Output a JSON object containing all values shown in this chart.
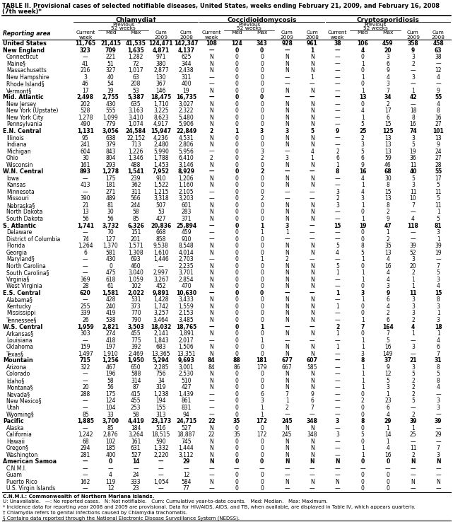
{
  "title": "TABLE II. Provisional cases of selected notifiable diseases, United States, weeks ending February 21, 2009, and February 16, 2008",
  "subtitle": "(7th week)*",
  "col_groups": [
    "Chlamydia†",
    "Coccidioidomycosis",
    "Cryptosporidiosis"
  ],
  "rows": [
    [
      "United States",
      "11,765",
      "21,415",
      "41,535",
      "124,471",
      "142,347",
      "108",
      "124",
      "343",
      "928",
      "961",
      "38",
      "106",
      "459",
      "358",
      "458"
    ],
    [
      "New England",
      "323",
      "709",
      "1,635",
      "4,871",
      "4,137",
      "—",
      "0",
      "0",
      "—",
      "1",
      "—",
      "4",
      "20",
      "9",
      "63"
    ],
    [
      "Connecticut",
      "—",
      "221",
      "1,282",
      "971",
      "625",
      "N",
      "0",
      "0",
      "N",
      "N",
      "—",
      "0",
      "3",
      "3",
      "38"
    ],
    [
      "Maine§",
      "41",
      "51",
      "72",
      "380",
      "344",
      "N",
      "0",
      "0",
      "N",
      "N",
      "—",
      "1",
      "6",
      "2",
      "—"
    ],
    [
      "Massachusetts",
      "216",
      "327",
      "1,017",
      "2,877",
      "2,438",
      "N",
      "0",
      "0",
      "N",
      "N",
      "—",
      "0",
      "9",
      "—",
      "12"
    ],
    [
      "New Hampshire",
      "3",
      "40",
      "63",
      "130",
      "311",
      "—",
      "0",
      "0",
      "—",
      "1",
      "—",
      "1",
      "4",
      "3",
      "4"
    ],
    [
      "Rhode Island§",
      "46",
      "54",
      "208",
      "367",
      "400",
      "—",
      "0",
      "0",
      "—",
      "—",
      "—",
      "0",
      "3",
      "—",
      "—"
    ],
    [
      "Vermont§",
      "17",
      "19",
      "53",
      "146",
      "19",
      "N",
      "0",
      "0",
      "N",
      "N",
      "—",
      "1",
      "7",
      "1",
      "9"
    ],
    [
      "Mid. Atlantic",
      "2,498",
      "2,755",
      "5,387",
      "18,475",
      "16,735",
      "—",
      "0",
      "0",
      "—",
      "—",
      "—",
      "13",
      "34",
      "42",
      "55"
    ],
    [
      "New Jersey",
      "202",
      "430",
      "635",
      "1,710",
      "3,027",
      "N",
      "0",
      "0",
      "N",
      "N",
      "—",
      "0",
      "2",
      "—",
      "4"
    ],
    [
      "New York (Upstate)",
      "528",
      "555",
      "3,163",
      "3,225",
      "2,322",
      "N",
      "0",
      "0",
      "N",
      "N",
      "—",
      "4",
      "17",
      "18",
      "8"
    ],
    [
      "New York City",
      "1,278",
      "1,099",
      "3,410",
      "8,623",
      "5,480",
      "N",
      "0",
      "0",
      "N",
      "N",
      "—",
      "1",
      "6",
      "8",
      "16"
    ],
    [
      "Pennsylvania",
      "490",
      "779",
      "1,074",
      "4,917",
      "5,906",
      "N",
      "0",
      "0",
      "N",
      "N",
      "—",
      "5",
      "15",
      "16",
      "27"
    ],
    [
      "E.N. Central",
      "1,131",
      "3,056",
      "24,584",
      "15,947",
      "22,849",
      "2",
      "1",
      "3",
      "3",
      "5",
      "9",
      "25",
      "125",
      "74",
      "101"
    ],
    [
      "Illinois",
      "95",
      "638",
      "22,152",
      "4,236",
      "4,531",
      "N",
      "0",
      "0",
      "N",
      "N",
      "—",
      "2",
      "13",
      "3",
      "13"
    ],
    [
      "Indiana",
      "241",
      "379",
      "713",
      "2,480",
      "2,806",
      "N",
      "0",
      "0",
      "N",
      "N",
      "—",
      "3",
      "13",
      "5",
      "9"
    ],
    [
      "Michigan",
      "604",
      "843",
      "1,226",
      "5,990",
      "5,956",
      "—",
      "0",
      "3",
      "—",
      "4",
      "2",
      "5",
      "13",
      "19",
      "24"
    ],
    [
      "Ohio",
      "30",
      "804",
      "1,346",
      "1,788",
      "6,410",
      "2",
      "0",
      "2",
      "3",
      "1",
      "6",
      "6",
      "59",
      "36",
      "27"
    ],
    [
      "Wisconsin",
      "161",
      "293",
      "488",
      "1,453",
      "3,146",
      "N",
      "0",
      "0",
      "N",
      "N",
      "1",
      "9",
      "46",
      "11",
      "28"
    ],
    [
      "W.N. Central",
      "893",
      "1,278",
      "1,541",
      "7,952",
      "8,929",
      "—",
      "0",
      "2",
      "—",
      "—",
      "8",
      "16",
      "68",
      "40",
      "55"
    ],
    [
      "Iowa",
      "—",
      "175",
      "239",
      "910",
      "1,206",
      "N",
      "0",
      "0",
      "N",
      "N",
      "—",
      "4",
      "30",
      "5",
      "17"
    ],
    [
      "Kansas",
      "413",
      "181",
      "362",
      "1,522",
      "1,160",
      "N",
      "0",
      "0",
      "N",
      "N",
      "—",
      "1",
      "8",
      "3",
      "5"
    ],
    [
      "Minnesota",
      "—",
      "271",
      "311",
      "1,215",
      "2,105",
      "—",
      "0",
      "0",
      "—",
      "—",
      "3",
      "4",
      "15",
      "11",
      "11"
    ],
    [
      "Missouri",
      "390",
      "489",
      "566",
      "3,318",
      "3,203",
      "—",
      "0",
      "2",
      "—",
      "—",
      "2",
      "3",
      "13",
      "10",
      "5"
    ],
    [
      "Nebraska§",
      "21",
      "81",
      "244",
      "507",
      "601",
      "N",
      "0",
      "0",
      "N",
      "N",
      "3",
      "1",
      "8",
      "7",
      "11"
    ],
    [
      "North Dakota",
      "13",
      "30",
      "58",
      "53",
      "283",
      "N",
      "0",
      "0",
      "N",
      "N",
      "—",
      "0",
      "2",
      "—",
      "1"
    ],
    [
      "South Dakota",
      "56",
      "56",
      "85",
      "427",
      "371",
      "N",
      "0",
      "0",
      "N",
      "N",
      "—",
      "1",
      "9",
      "4",
      "5"
    ],
    [
      "S. Atlantic",
      "1,741",
      "3,732",
      "6,326",
      "20,836",
      "25,894",
      "—",
      "0",
      "1",
      "3",
      "—",
      "15",
      "19",
      "47",
      "118",
      "81"
    ],
    [
      "Delaware",
      "—",
      "70",
      "151",
      "668",
      "459",
      "—",
      "0",
      "1",
      "1",
      "—",
      "—",
      "0",
      "1",
      "—",
      "3"
    ],
    [
      "District of Columbia",
      "74",
      "127",
      "201",
      "858",
      "910",
      "—",
      "0",
      "0",
      "—",
      "—",
      "—",
      "0",
      "2",
      "—",
      "1"
    ],
    [
      "Florida",
      "1,264",
      "1,370",
      "1,571",
      "9,538",
      "8,548",
      "N",
      "0",
      "0",
      "N",
      "N",
      "5",
      "8",
      "35",
      "39",
      "39"
    ],
    [
      "Georgia",
      "6",
      "581",
      "1,308",
      "1,610",
      "4,014",
      "N",
      "0",
      "0",
      "N",
      "N",
      "4",
      "5",
      "13",
      "52",
      "19"
    ],
    [
      "Maryland§",
      "—",
      "430",
      "693",
      "1,446",
      "2,703",
      "—",
      "0",
      "1",
      "2",
      "—",
      "—",
      "1",
      "4",
      "3",
      "—"
    ],
    [
      "North Carolina",
      "—",
      "0",
      "460",
      "—",
      "2,235",
      "N",
      "0",
      "0",
      "N",
      "N",
      "5",
      "0",
      "16",
      "20",
      "7"
    ],
    [
      "South Carolina§",
      "—",
      "475",
      "3,040",
      "2,997",
      "3,701",
      "N",
      "0",
      "0",
      "N",
      "N",
      "1",
      "1",
      "4",
      "2",
      "5"
    ],
    [
      "Virginia§",
      "369",
      "618",
      "1,059",
      "3,267",
      "2,854",
      "N",
      "0",
      "0",
      "N",
      "N",
      "—",
      "1",
      "4",
      "1",
      "3"
    ],
    [
      "West Virginia",
      "28",
      "61",
      "102",
      "452",
      "470",
      "N",
      "0",
      "0",
      "N",
      "N",
      "—",
      "0",
      "3",
      "1",
      "4"
    ],
    [
      "E.S. Central",
      "620",
      "1,581",
      "2,022",
      "9,891",
      "10,630",
      "—",
      "0",
      "0",
      "—",
      "—",
      "1",
      "3",
      "9",
      "11",
      "15"
    ],
    [
      "Alabama§",
      "—",
      "428",
      "531",
      "1,428",
      "3,433",
      "N",
      "0",
      "0",
      "N",
      "N",
      "—",
      "1",
      "6",
      "3",
      "8"
    ],
    [
      "Kentucky",
      "255",
      "240",
      "373",
      "1,742",
      "1,559",
      "N",
      "0",
      "0",
      "N",
      "N",
      "1",
      "0",
      "4",
      "3",
      "3"
    ],
    [
      "Mississippi",
      "339",
      "419",
      "770",
      "3,257",
      "2,153",
      "N",
      "0",
      "0",
      "N",
      "N",
      "—",
      "0",
      "2",
      "3",
      "1"
    ],
    [
      "Tennessee§",
      "26",
      "538",
      "790",
      "3,464",
      "3,485",
      "N",
      "0",
      "0",
      "N",
      "N",
      "—",
      "1",
      "6",
      "2",
      "3"
    ],
    [
      "W.S. Central",
      "1,959",
      "2,821",
      "3,503",
      "18,032",
      "18,765",
      "—",
      "0",
      "1",
      "—",
      "—",
      "2",
      "7",
      "164",
      "4",
      "18"
    ],
    [
      "Arkansas§",
      "303",
      "274",
      "455",
      "2,141",
      "1,891",
      "N",
      "0",
      "0",
      "N",
      "N",
      "1",
      "0",
      "7",
      "1",
      "1"
    ],
    [
      "Louisiana",
      "—",
      "418",
      "775",
      "1,843",
      "2,017",
      "—",
      "0",
      "1",
      "—",
      "—",
      "—",
      "1",
      "5",
      "—",
      "4"
    ],
    [
      "Oklahoma",
      "159",
      "197",
      "392",
      "683",
      "1,506",
      "N",
      "0",
      "0",
      "N",
      "N",
      "1",
      "1",
      "16",
      "3",
      "6"
    ],
    [
      "Texas§",
      "1,497",
      "1,910",
      "2,469",
      "13,365",
      "13,351",
      "N",
      "0",
      "0",
      "N",
      "N",
      "—",
      "3",
      "149",
      "—",
      "7"
    ],
    [
      "Mountain",
      "715",
      "1,256",
      "1,950",
      "5,294",
      "9,693",
      "84",
      "88",
      "181",
      "677",
      "607",
      "—",
      "8",
      "37",
      "21",
      "31"
    ],
    [
      "Arizona",
      "322",
      "467",
      "650",
      "2,285",
      "3,001",
      "84",
      "86",
      "179",
      "667",
      "585",
      "—",
      "1",
      "9",
      "3",
      "8"
    ],
    [
      "Colorado",
      "—",
      "196",
      "588",
      "756",
      "2,530",
      "N",
      "0",
      "0",
      "N",
      "N",
      "—",
      "1",
      "12",
      "5",
      "5"
    ],
    [
      "Idaho§",
      "—",
      "58",
      "314",
      "34",
      "510",
      "N",
      "0",
      "0",
      "N",
      "N",
      "—",
      "1",
      "5",
      "2",
      "8"
    ],
    [
      "Montana§",
      "20",
      "56",
      "87",
      "319",
      "427",
      "N",
      "0",
      "0",
      "N",
      "N",
      "—",
      "1",
      "3",
      "2",
      "4"
    ],
    [
      "Nevada§",
      "288",
      "175",
      "415",
      "1,238",
      "1,439",
      "—",
      "0",
      "6",
      "7",
      "9",
      "—",
      "0",
      "1",
      "2",
      "—"
    ],
    [
      "New Mexico§",
      "—",
      "124",
      "455",
      "194",
      "861",
      "—",
      "0",
      "3",
      "1",
      "6",
      "—",
      "2",
      "23",
      "5",
      "3"
    ],
    [
      "Utah",
      "—",
      "104",
      "253",
      "155",
      "831",
      "—",
      "0",
      "1",
      "2",
      "7",
      "—",
      "0",
      "6",
      "—",
      "3"
    ],
    [
      "Wyoming§",
      "85",
      "33",
      "58",
      "313",
      "94",
      "—",
      "0",
      "1",
      "—",
      "—",
      "—",
      "0",
      "4",
      "2",
      "—"
    ],
    [
      "Pacific",
      "1,885",
      "3,700",
      "4,419",
      "23,173",
      "24,715",
      "22",
      "35",
      "172",
      "245",
      "348",
      "3",
      "8",
      "29",
      "39",
      "39"
    ],
    [
      "Alaska",
      "—",
      "85",
      "184",
      "516",
      "527",
      "N",
      "0",
      "0",
      "N",
      "N",
      "—",
      "0",
      "1",
      "1",
      "—"
    ],
    [
      "California",
      "1,242",
      "2,876",
      "3,264",
      "18,515",
      "18,887",
      "22",
      "35",
      "172",
      "245",
      "348",
      "3",
      "5",
      "14",
      "25",
      "29"
    ],
    [
      "Hawaii",
      "68",
      "102",
      "161",
      "590",
      "745",
      "N",
      "0",
      "0",
      "N",
      "N",
      "—",
      "0",
      "1",
      "—",
      "—"
    ],
    [
      "Oregon§",
      "294",
      "185",
      "631",
      "1,332",
      "1,444",
      "N",
      "0",
      "0",
      "N",
      "N",
      "—",
      "1",
      "4",
      "11",
      "7"
    ],
    [
      "Washington",
      "281",
      "400",
      "527",
      "2,220",
      "3,112",
      "N",
      "0",
      "0",
      "N",
      "N",
      "—",
      "1",
      "16",
      "2",
      "3"
    ],
    [
      "American Samoa",
      "—",
      "0",
      "14",
      "—",
      "29",
      "N",
      "0",
      "0",
      "N",
      "N",
      "N",
      "0",
      "0",
      "N",
      "N"
    ],
    [
      "C.N.M.I.",
      "—",
      "—",
      "—",
      "—",
      "—",
      "—",
      "—",
      "—",
      "—",
      "—",
      "—",
      "—",
      "—",
      "—",
      "—"
    ],
    [
      "Guam",
      "—",
      "4",
      "24",
      "—",
      "12",
      "—",
      "0",
      "0",
      "—",
      "—",
      "—",
      "0",
      "0",
      "—",
      "—"
    ],
    [
      "Puerto Rico",
      "162",
      "119",
      "333",
      "1,054",
      "584",
      "N",
      "0",
      "0",
      "N",
      "N",
      "N",
      "0",
      "0",
      "N",
      "N"
    ],
    [
      "U.S. Virgin Islands",
      "—",
      "12",
      "23",
      "—",
      "77",
      "—",
      "0",
      "0",
      "—",
      "—",
      "—",
      "0",
      "0",
      "—",
      "—"
    ]
  ],
  "bold_rows": [
    0,
    1,
    8,
    13,
    19,
    27,
    37,
    42,
    47,
    56,
    62
  ],
  "footer_lines": [
    "C.N.M.I.: Commonwealth of Northern Mariana Islands.",
    "U: Unavailable.   —: No reported cases.   N: Not notifiable.   Cum: Cumulative year-to-date counts.   Med: Median.   Max: Maximum.",
    "* Incidence data for reporting year 2008 and 2009 are provisional. Data for HIV/AIDS, AIDS, and TB, when available, are displayed in Table IV, which appears quarterly.",
    "† Chlamydia refers to genital infections caused by Chlamydia trachomatis.",
    "§ Contains data reported through the National Electronic Disease Surveillance System (NEDSS)."
  ]
}
